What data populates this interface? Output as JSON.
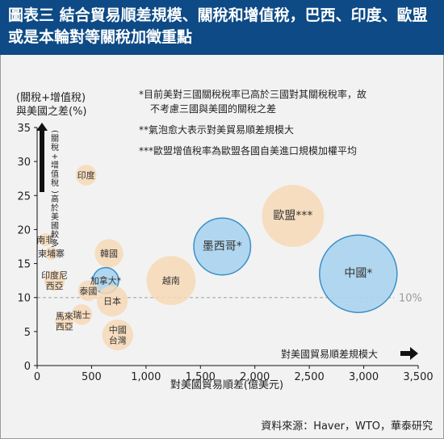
{
  "title": "圖表三 結合貿易順差規模、關稅和增值稅，巴西、印度、歐盟或是本輪對等關稅加徵重點",
  "notes": [
    "*目前美對三國關稅稅率已高於三國對其關稅稅率，故",
    "不考慮三國與美國的關稅之差",
    "**氣泡愈大表示對美貿易順差規模大",
    "***歐盟增值稅率為歐盟各國自美進口規模加權平均"
  ],
  "source": "資料來源：Haver，WTO，華泰研究",
  "colors": {
    "accent": "#0d4a86",
    "bubble": "#f7d9b6",
    "highlight": "#a9d4ee",
    "highlight_stroke": "#3b8fc8",
    "ref": "#b0b0b0"
  },
  "chart_data": {
    "type": "scatter",
    "ylabel": "(關稅+增值稅)與美國之差(%)",
    "ylabel_line1": "(關稅+增值稅)",
    "ylabel_line2": "與美國之差(%)",
    "y_arrow_label": "(關稅+增值稅)高於美國較多",
    "x_arrow_label": "對美國貿易順差規模大",
    "xlabel": "對美國貿易順差(億美元)",
    "xlim": [
      0,
      3500
    ],
    "ylim": [
      0,
      35
    ],
    "xticks": [
      "0",
      "500",
      "1,000",
      "1,500",
      "2,000",
      "2,500",
      "3,000",
      "3,500"
    ],
    "yticks": [
      "0",
      "5",
      "10",
      "15",
      "20",
      "25",
      "30",
      "35"
    ],
    "reference_line": {
      "y": 10,
      "label": "10%"
    },
    "points": [
      {
        "name": "印度",
        "x": 450,
        "y": 28,
        "size": 0.8,
        "highlight": false
      },
      {
        "name": "南非",
        "x": 75,
        "y": 18.5,
        "size": 0.5,
        "highlight": false
      },
      {
        "name": "柬埔寨",
        "x": 130,
        "y": 16.5,
        "size": 0.5,
        "highlight": false
      },
      {
        "name": "印度尼西亞",
        "x": 160,
        "y": 12.5,
        "size": 0.8,
        "highlight": false
      },
      {
        "name": "韓國",
        "x": 660,
        "y": 16.5,
        "size": 1.1,
        "highlight": false
      },
      {
        "name": "加拿大*",
        "x": 630,
        "y": 12.5,
        "size": 1.0,
        "highlight": true
      },
      {
        "name": "泰國",
        "x": 470,
        "y": 11,
        "size": 0.8,
        "highlight": false
      },
      {
        "name": "日本",
        "x": 690,
        "y": 9.5,
        "size": 1.2,
        "highlight": false
      },
      {
        "name": "瑞士",
        "x": 410,
        "y": 7.5,
        "size": 0.8,
        "highlight": false
      },
      {
        "name": "馬來西亞",
        "x": 250,
        "y": 6.5,
        "size": 0.7,
        "highlight": false
      },
      {
        "name": "中國台灣",
        "x": 740,
        "y": 4.5,
        "size": 1.2,
        "highlight": false
      },
      {
        "name": "越南",
        "x": 1230,
        "y": 12.5,
        "size": 1.9,
        "highlight": false
      },
      {
        "name": "墨西哥*",
        "x": 1700,
        "y": 17.5,
        "size": 2.2,
        "highlight": true
      },
      {
        "name": "歐盟***",
        "x": 2350,
        "y": 22,
        "size": 2.4,
        "highlight": false
      },
      {
        "name": "中國*",
        "x": 2950,
        "y": 13.5,
        "size": 3.0,
        "highlight": true
      }
    ]
  }
}
